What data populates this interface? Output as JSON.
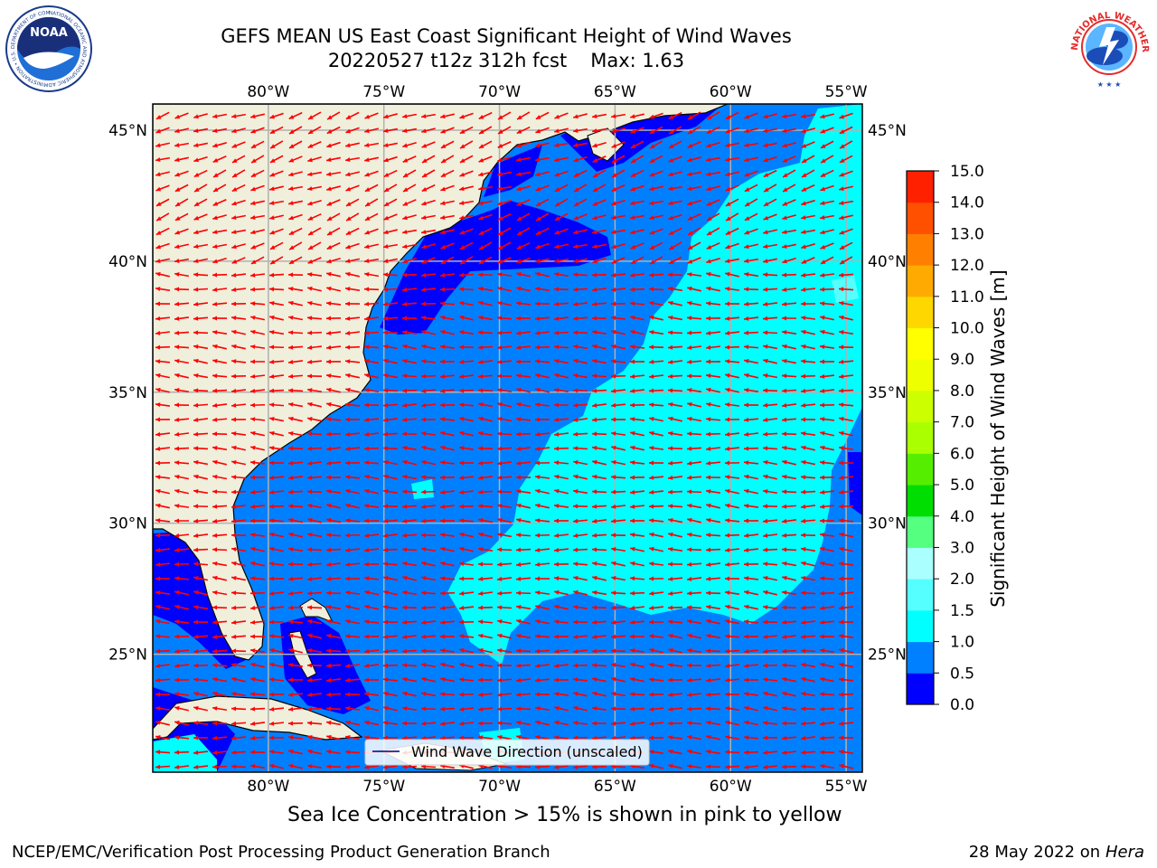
{
  "title": {
    "line1": "GEFS MEAN US East Coast Significant Height of Wind Waves",
    "run": "20220527 t12z 312h fcst",
    "max": "Max: 1.63"
  },
  "logos": {
    "left": {
      "text": "NOAA",
      "icon": "noaa-logo-icon"
    },
    "right": {
      "text": "NATIONAL WEATHER SERVICE",
      "icon": "nws-logo-icon"
    }
  },
  "map": {
    "lon_range": [
      -85,
      -54.3
    ],
    "lat_range": [
      20.5,
      46
    ],
    "lon_ticks": [
      {
        "v": -80,
        "label": "80°W"
      },
      {
        "v": -75,
        "label": "75°W"
      },
      {
        "v": -70,
        "label": "70°W"
      },
      {
        "v": -65,
        "label": "65°W"
      },
      {
        "v": -60,
        "label": "60°W"
      },
      {
        "v": -55,
        "label": "55°W"
      }
    ],
    "lat_ticks": [
      {
        "v": 45,
        "label": "45°N"
      },
      {
        "v": 40,
        "label": "40°N"
      },
      {
        "v": 35,
        "label": "35°N"
      },
      {
        "v": 30,
        "label": "30°N"
      },
      {
        "v": 25,
        "label": "25°N"
      }
    ],
    "legend_label": "Wind Wave Direction (unscaled)",
    "legend_position": "bottom-center",
    "grid": true,
    "colors": {
      "land": "#efefdc",
      "ocean_low": "#0000ff",
      "ocean_mid": "#0080ff",
      "ocean_high": "#00ffff",
      "arrow": "#ff0000",
      "grid": "#b0b0b0"
    }
  },
  "colorbar": {
    "label": "Significant Height of Wind Waves [m]",
    "levels": [
      "0.0",
      "0.5",
      "1.0",
      "1.5",
      "2.0",
      "3.0",
      "4.0",
      "5.0",
      "6.0",
      "7.0",
      "8.0",
      "9.0",
      "10.0",
      "11.0",
      "12.0",
      "13.0",
      "14.0",
      "15.0"
    ],
    "colors": [
      "#0000ff",
      "#0080ff",
      "#00ffff",
      "#55ffff",
      "#aaffff",
      "#55ff80",
      "#00dd00",
      "#55ee00",
      "#aaff00",
      "#ccff00",
      "#eeff00",
      "#ffff00",
      "#ffd700",
      "#ffaa00",
      "#ff8000",
      "#ff5000",
      "#ff2000"
    ]
  },
  "subtitle": "Sea Ice Concentration > 15% is shown in pink to yellow",
  "footer": {
    "left": "NCEP/EMC/Verification Post Processing Product Generation Branch",
    "date": "28 May 2022 on",
    "machine": "Hera"
  }
}
